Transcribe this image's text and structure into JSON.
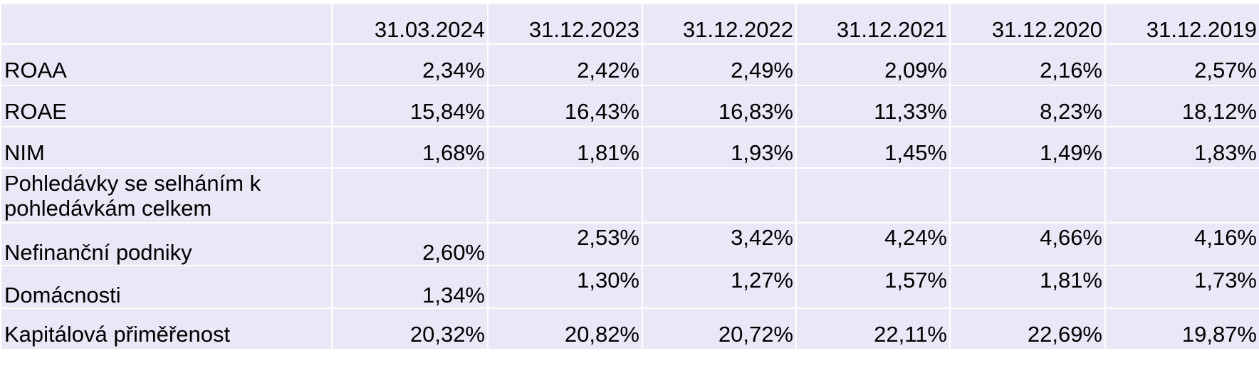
{
  "table": {
    "headers": [
      "",
      "31.03.2024",
      "31.12.2023",
      "31.12.2022",
      "31.12.2021",
      "31.12.2020",
      "31.12.2019"
    ],
    "rows": [
      {
        "label": "ROAA",
        "values": [
          "2,34%",
          "2,42%",
          "2,49%",
          "2,09%",
          "2,16%",
          "2,57%"
        ]
      },
      {
        "label": "ROAE",
        "values": [
          "15,84%",
          "16,43%",
          "16,83%",
          "11,33%",
          "8,23%",
          "18,12%"
        ]
      },
      {
        "label": "NIM",
        "values": [
          "1,68%",
          "1,81%",
          "1,93%",
          "1,45%",
          "1,49%",
          "1,83%"
        ]
      },
      {
        "label": "Pohledávky se selháním k pohledávkám celkem",
        "values": [
          "",
          "",
          "",
          "",
          "",
          ""
        ]
      },
      {
        "label": "Nefinanční podniky",
        "values": [
          "2,60%",
          "2,53%",
          "3,42%",
          "4,24%",
          "4,66%",
          "4,16%"
        ]
      },
      {
        "label": "Domácnosti",
        "values": [
          "1,34%",
          "1,30%",
          "1,27%",
          "1,57%",
          "1,81%",
          "1,73%"
        ]
      },
      {
        "label": "Kapitálová přiměřenost",
        "values": [
          "20,32%",
          "20,82%",
          "20,72%",
          "22,11%",
          "22,69%",
          "19,87%"
        ]
      }
    ]
  }
}
